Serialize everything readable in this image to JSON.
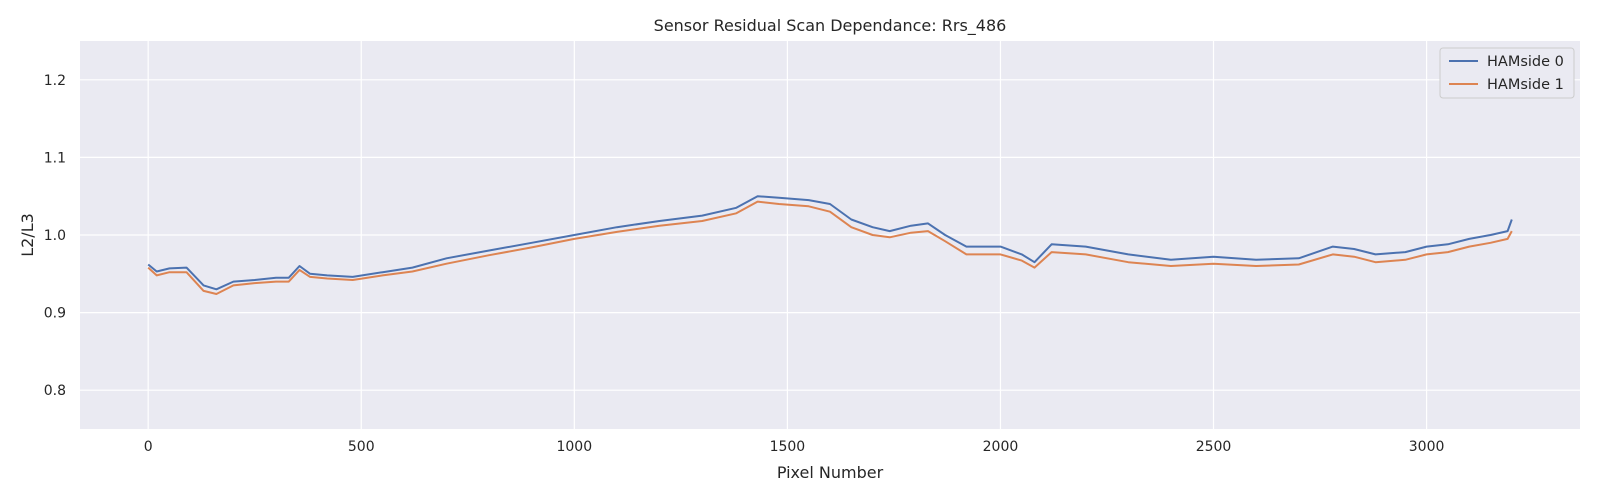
{
  "chart_data": {
    "type": "line",
    "title": "Sensor Residual Scan Dependance: Rrs_486",
    "xlabel": "Pixel Number",
    "ylabel": "L2/L3",
    "xlim": [
      -160,
      3360
    ],
    "ylim": [
      0.75,
      1.25
    ],
    "xticks": [
      0,
      500,
      1000,
      1500,
      2000,
      2500,
      3000
    ],
    "xtick_labels": [
      "0",
      "500",
      "1000",
      "1500",
      "2000",
      "2500",
      "3000"
    ],
    "yticks": [
      0.8,
      0.9,
      1.0,
      1.1,
      1.2
    ],
    "ytick_labels": [
      "0.8",
      "0.9",
      "1.0",
      "1.1",
      "1.2"
    ],
    "grid": true,
    "legend_position": "top-right",
    "series": [
      {
        "name": "HAMside 0",
        "color": "#4c72b0",
        "x": [
          0,
          20,
          50,
          90,
          130,
          160,
          200,
          250,
          300,
          330,
          355,
          380,
          420,
          480,
          550,
          620,
          700,
          800,
          900,
          1000,
          1100,
          1200,
          1300,
          1380,
          1430,
          1480,
          1550,
          1600,
          1650,
          1700,
          1740,
          1790,
          1830,
          1870,
          1920,
          1960,
          2000,
          2050,
          2080,
          2120,
          2200,
          2300,
          2400,
          2500,
          2600,
          2700,
          2780,
          2830,
          2880,
          2950,
          3000,
          3050,
          3100,
          3150,
          3190,
          3200
        ],
        "y": [
          0.962,
          0.953,
          0.957,
          0.958,
          0.935,
          0.93,
          0.94,
          0.942,
          0.945,
          0.945,
          0.96,
          0.95,
          0.948,
          0.946,
          0.952,
          0.958,
          0.97,
          0.98,
          0.99,
          1.0,
          1.01,
          1.018,
          1.025,
          1.035,
          1.05,
          1.048,
          1.045,
          1.04,
          1.02,
          1.01,
          1.005,
          1.012,
          1.015,
          1.0,
          0.985,
          0.985,
          0.985,
          0.975,
          0.965,
          0.988,
          0.985,
          0.975,
          0.968,
          0.972,
          0.968,
          0.97,
          0.985,
          0.982,
          0.975,
          0.978,
          0.985,
          0.988,
          0.995,
          1.0,
          1.005,
          1.02
        ]
      },
      {
        "name": "HAMside 1",
        "color": "#dd8452",
        "x": [
          0,
          20,
          50,
          90,
          130,
          160,
          200,
          250,
          300,
          330,
          355,
          380,
          420,
          480,
          550,
          620,
          700,
          800,
          900,
          1000,
          1100,
          1200,
          1300,
          1380,
          1430,
          1480,
          1550,
          1600,
          1650,
          1700,
          1740,
          1790,
          1830,
          1870,
          1920,
          1960,
          2000,
          2050,
          2080,
          2120,
          2200,
          2300,
          2400,
          2500,
          2600,
          2700,
          2780,
          2830,
          2880,
          2950,
          3000,
          3050,
          3100,
          3150,
          3190,
          3200
        ],
        "y": [
          0.958,
          0.948,
          0.952,
          0.952,
          0.928,
          0.924,
          0.935,
          0.938,
          0.94,
          0.94,
          0.955,
          0.946,
          0.944,
          0.942,
          0.948,
          0.953,
          0.963,
          0.974,
          0.984,
          0.995,
          1.004,
          1.012,
          1.018,
          1.028,
          1.043,
          1.04,
          1.037,
          1.03,
          1.01,
          1.0,
          0.997,
          1.003,
          1.005,
          0.992,
          0.975,
          0.975,
          0.975,
          0.967,
          0.958,
          0.978,
          0.975,
          0.965,
          0.96,
          0.963,
          0.96,
          0.962,
          0.975,
          0.972,
          0.965,
          0.968,
          0.975,
          0.978,
          0.985,
          0.99,
          0.995,
          1.005
        ]
      }
    ]
  }
}
